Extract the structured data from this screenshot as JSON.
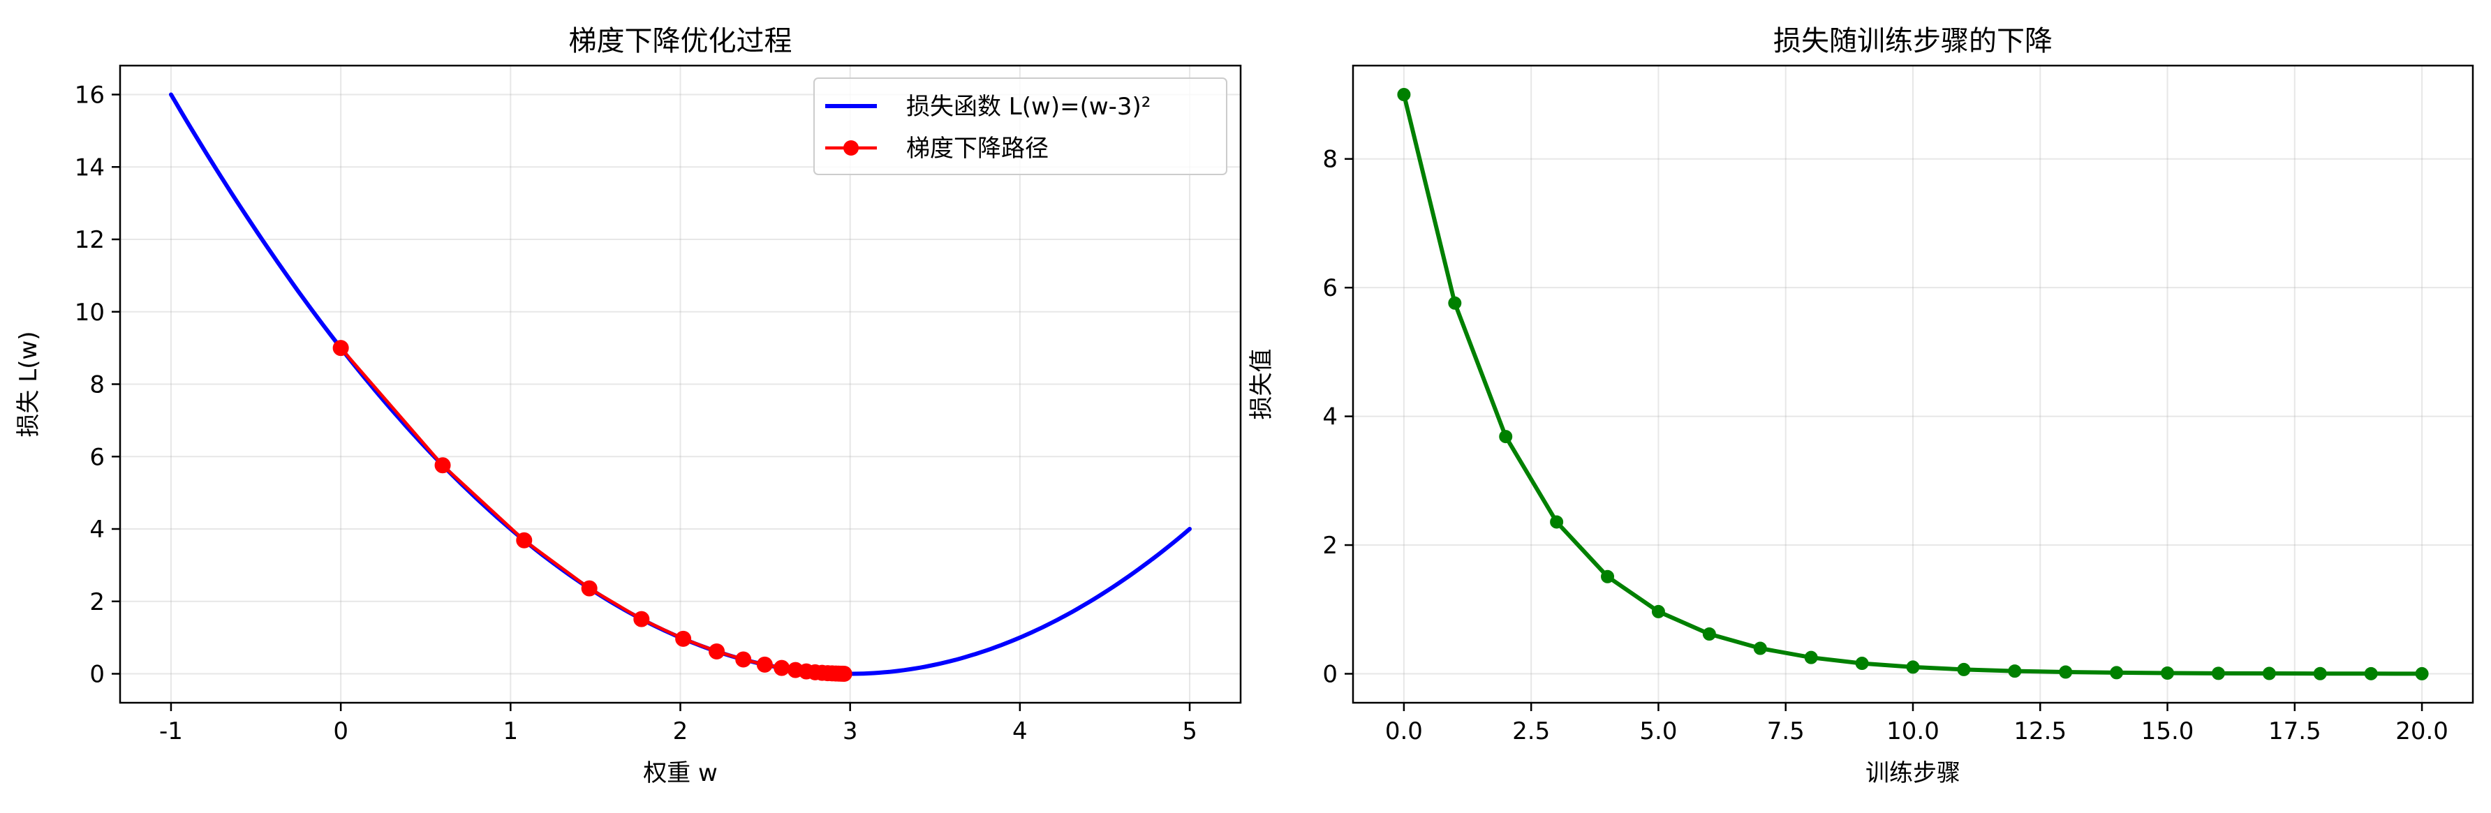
{
  "chart_data": [
    {
      "type": "line",
      "title": "梯度下降优化过程",
      "xlabel": "权重 w",
      "ylabel": "损失 L(w)",
      "xlim": [
        -1.3,
        5.3
      ],
      "ylim": [
        -0.8,
        16.8
      ],
      "xticks": [
        -1,
        0,
        1,
        2,
        3,
        4,
        5
      ],
      "xtick_labels": [
        "-1",
        "0",
        "1",
        "2",
        "3",
        "4",
        "5"
      ],
      "yticks": [
        0,
        2,
        4,
        6,
        8,
        10,
        12,
        14,
        16
      ],
      "ytick_labels": [
        "0",
        "2",
        "4",
        "6",
        "8",
        "10",
        "12",
        "14",
        "16"
      ],
      "grid": true,
      "legend_position": "top-right",
      "series": [
        {
          "name": "损失函数 L(w)=(w-3)²",
          "kind": "curve",
          "function": "(w-3)^2",
          "x_range": [
            -1,
            5
          ],
          "color": "#0000ff",
          "marker": "none"
        },
        {
          "name": "梯度下降路径",
          "kind": "path",
          "color": "#ff0000",
          "marker": "circle",
          "x": [
            0,
            0.6,
            1.08,
            1.464,
            1.771,
            2.017,
            2.214,
            2.371,
            2.497,
            2.597,
            2.678,
            2.742,
            2.794,
            2.835,
            2.868,
            2.894,
            2.916,
            2.932,
            2.946,
            2.957,
            2.965
          ],
          "y": [
            9,
            5.76,
            3.686,
            2.359,
            1.51,
            0.966,
            0.618,
            0.396,
            0.253,
            0.162,
            0.104,
            0.066,
            0.042,
            0.027,
            0.017,
            0.011,
            0.007,
            0.005,
            0.003,
            0.002,
            0.001
          ]
        }
      ]
    },
    {
      "type": "line",
      "title": "损失随训练步骤的下降",
      "xlabel": "训练步骤",
      "ylabel": "损失值",
      "xlim": [
        -1,
        21
      ],
      "ylim": [
        -0.45,
        9.45
      ],
      "xticks": [
        0,
        2.5,
        5,
        7.5,
        10,
        12.5,
        15,
        17.5,
        20
      ],
      "xtick_labels": [
        "0.0",
        "2.5",
        "5.0",
        "7.5",
        "10.0",
        "12.5",
        "15.0",
        "17.5",
        "20.0"
      ],
      "yticks": [
        0,
        2,
        4,
        6,
        8
      ],
      "ytick_labels": [
        "0",
        "2",
        "4",
        "6",
        "8"
      ],
      "grid": true,
      "series": [
        {
          "color": "#008000",
          "marker": "circle",
          "x": [
            0,
            1,
            2,
            3,
            4,
            5,
            6,
            7,
            8,
            9,
            10,
            11,
            12,
            13,
            14,
            15,
            16,
            17,
            18,
            19,
            20
          ],
          "y": [
            9,
            5.76,
            3.686,
            2.359,
            1.51,
            0.966,
            0.618,
            0.396,
            0.253,
            0.162,
            0.104,
            0.066,
            0.042,
            0.027,
            0.017,
            0.011,
            0.007,
            0.005,
            0.003,
            0.002,
            0.001
          ]
        }
      ]
    }
  ]
}
